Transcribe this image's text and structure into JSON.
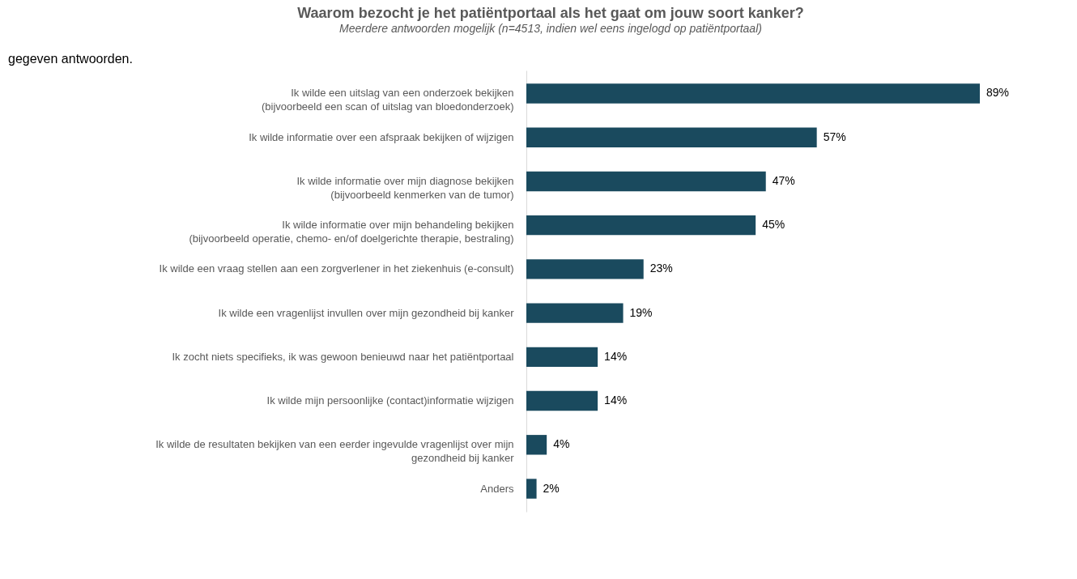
{
  "chart_data": {
    "type": "bar",
    "orientation": "horizontal",
    "title": "Waarom bezocht je het patiëntportaal als het gaat om jouw soort kanker?",
    "subtitle": "Meerdere antwoorden mogelijk (n=4513, indien wel eens ingelogd op patiëntportaal)",
    "categories": [
      "Ik wilde een uitslag van een onderzoek bekijken\n(bijvoorbeeld een scan of uitslag van bloedonderzoek)",
      "Ik wilde informatie over een afspraak bekijken of wijzigen",
      "Ik wilde informatie over mijn diagnose bekijken\n(bijvoorbeeld kenmerken van de tumor)",
      "Ik wilde informatie over mijn behandeling bekijken\n(bijvoorbeeld operatie, chemo- en/of doelgerichte therapie, bestraling)",
      "Ik wilde een vraag stellen aan een zorgverlener in het ziekenhuis (e-consult)",
      "Ik wilde een vragenlijst invullen over mijn gezondheid bij kanker",
      "Ik zocht niets specifieks, ik was gewoon benieuwd naar het patiëntportaal",
      "Ik wilde mijn persoonlijke (contact)informatie wijzigen",
      "Ik wilde de resultaten bekijken van een eerder ingevulde vragenlijst over mijn\ngezondheid bij kanker",
      "Anders"
    ],
    "values": [
      89,
      57,
      47,
      45,
      23,
      19,
      14,
      14,
      4,
      2
    ],
    "value_labels": [
      "89%",
      "57%",
      "47%",
      "45%",
      "23%",
      "19%",
      "14%",
      "14%",
      "4%",
      "2%"
    ],
    "color": "#1a4a5e",
    "annotations": [
      "gegeven antwoorden."
    ]
  }
}
